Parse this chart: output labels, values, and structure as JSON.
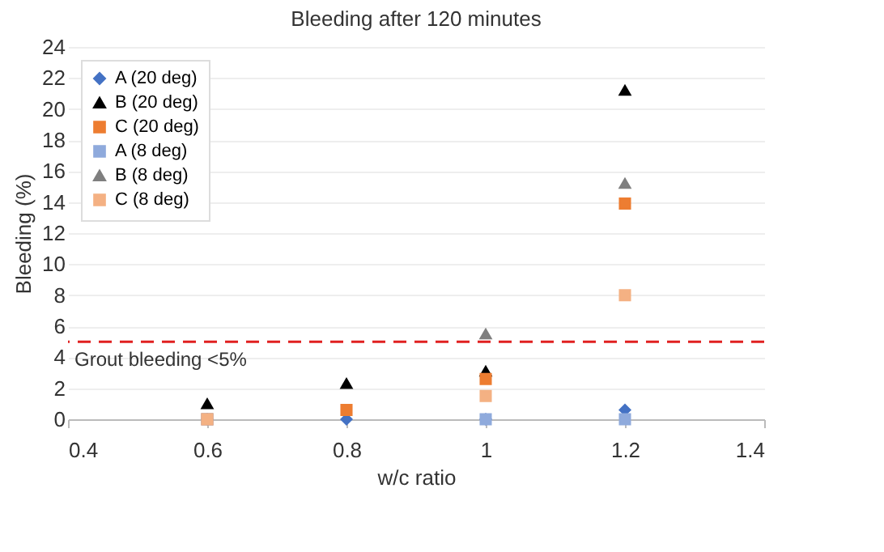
{
  "chart_data": {
    "type": "scatter",
    "title": "Bleeding after 120 minutes",
    "xlabel": "w/c ratio",
    "ylabel": "Bleeding (%)",
    "x": [
      0.6,
      0.8,
      1,
      1.2
    ],
    "series": [
      {
        "name": "A (20 deg)",
        "color": "#4472c4",
        "marker": "diamond",
        "values": [
          0,
          0,
          0,
          0.6
        ]
      },
      {
        "name": "B (20 deg)",
        "color": "#000000",
        "marker": "triangle",
        "values": [
          1.0,
          2.3,
          3.1,
          21.2
        ]
      },
      {
        "name": "C (20 deg)",
        "color": "#ed7d31",
        "marker": "square",
        "values": [
          0,
          0.6,
          2.6,
          13.9
        ]
      },
      {
        "name": "A (8 deg)",
        "color": "#8faadc",
        "marker": "square",
        "values": [
          0,
          null,
          0,
          0
        ]
      },
      {
        "name": "B (8 deg)",
        "color": "#7f7f7f",
        "marker": "triangle",
        "values": [
          null,
          null,
          5.5,
          15.2
        ]
      },
      {
        "name": "C (8 deg)",
        "color": "#f4b183",
        "marker": "square",
        "values": [
          0,
          null,
          1.5,
          8.0
        ]
      }
    ],
    "xlim": [
      0.4,
      1.4
    ],
    "xticks": [
      0.4,
      0.6,
      0.8,
      1,
      1.2,
      1.4
    ],
    "ylim": [
      0,
      24
    ],
    "yticks": [
      0,
      2,
      4,
      6,
      8,
      10,
      12,
      14,
      16,
      18,
      20,
      22,
      24
    ],
    "grid": "y",
    "legend": "top left",
    "ref_lines": [
      {
        "axis": "y",
        "value": 5,
        "label": "Grout bleeding <5%",
        "color": "#e02020",
        "line_style": "dashed"
      }
    ]
  }
}
